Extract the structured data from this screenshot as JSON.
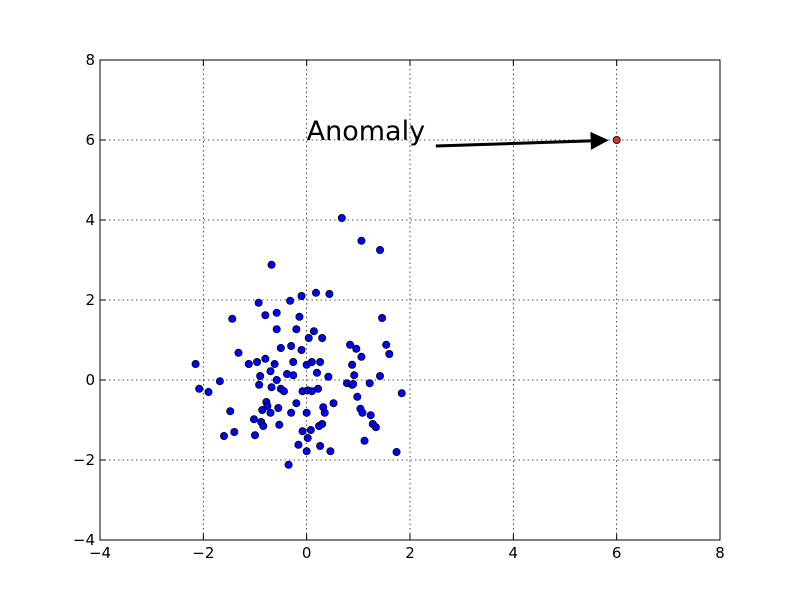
{
  "chart_data": {
    "type": "scatter",
    "title": "",
    "xlabel": "",
    "ylabel": "",
    "xlim": [
      -4,
      8
    ],
    "ylim": [
      -4,
      8
    ],
    "grid": true,
    "xticks": [
      -4,
      -2,
      0,
      2,
      4,
      6,
      8
    ],
    "yticks": [
      -4,
      -2,
      0,
      2,
      4,
      6,
      8
    ],
    "xtick_labels": [
      "−4",
      "−2",
      "0",
      "2",
      "4",
      "6",
      "8"
    ],
    "ytick_labels": [
      "−4",
      "−2",
      "0",
      "2",
      "4",
      "6",
      "8"
    ],
    "series": [
      {
        "color": "#0000ff",
        "points": [
          [
            -2.15,
            0.4
          ],
          [
            -2.08,
            -0.22
          ],
          [
            -1.9,
            -0.3
          ],
          [
            -1.68,
            -0.03
          ],
          [
            -1.6,
            -1.4
          ],
          [
            -1.48,
            -0.78
          ],
          [
            -1.44,
            1.53
          ],
          [
            -1.4,
            -1.3
          ],
          [
            -1.32,
            0.68
          ],
          [
            -1.12,
            0.4
          ],
          [
            -1.02,
            -0.98
          ],
          [
            -1.0,
            -1.38
          ],
          [
            -0.96,
            0.45
          ],
          [
            -0.93,
            1.93
          ],
          [
            -0.92,
            -0.12
          ],
          [
            -0.9,
            0.1
          ],
          [
            -0.88,
            -1.05
          ],
          [
            -0.86,
            -0.75
          ],
          [
            -0.84,
            -1.15
          ],
          [
            -0.8,
            0.53
          ],
          [
            -0.8,
            1.62
          ],
          [
            -0.78,
            -0.55
          ],
          [
            -0.76,
            -0.65
          ],
          [
            -0.7,
            -0.82
          ],
          [
            -0.7,
            0.22
          ],
          [
            -0.68,
            2.88
          ],
          [
            -0.68,
            -0.18
          ],
          [
            -0.62,
            0.4
          ],
          [
            -0.58,
            1.27
          ],
          [
            -0.58,
            1.68
          ],
          [
            -0.58,
            0.0
          ],
          [
            -0.55,
            -0.7
          ],
          [
            -0.53,
            -1.12
          ],
          [
            -0.5,
            -0.22
          ],
          [
            -0.5,
            0.8
          ],
          [
            -0.44,
            -0.28
          ],
          [
            -0.38,
            0.15
          ],
          [
            -0.35,
            -2.12
          ],
          [
            -0.32,
            1.98
          ],
          [
            -0.3,
            -0.82
          ],
          [
            -0.3,
            0.85
          ],
          [
            -0.26,
            0.45
          ],
          [
            -0.26,
            0.12
          ],
          [
            -0.2,
            -0.58
          ],
          [
            -0.2,
            1.27
          ],
          [
            -0.16,
            -1.62
          ],
          [
            -0.14,
            1.58
          ],
          [
            -0.1,
            0.75
          ],
          [
            -0.1,
            2.1
          ],
          [
            -0.08,
            -0.28
          ],
          [
            -0.08,
            -1.28
          ],
          [
            0.0,
            -0.82
          ],
          [
            0.0,
            -1.78
          ],
          [
            0.0,
            0.38
          ],
          [
            0.02,
            -0.26
          ],
          [
            0.02,
            -1.45
          ],
          [
            0.04,
            1.05
          ],
          [
            0.08,
            -1.25
          ],
          [
            0.1,
            0.45
          ],
          [
            0.1,
            -0.28
          ],
          [
            0.14,
            1.22
          ],
          [
            0.18,
            2.18
          ],
          [
            0.2,
            0.18
          ],
          [
            0.22,
            -0.22
          ],
          [
            0.24,
            -1.15
          ],
          [
            0.26,
            0.45
          ],
          [
            0.26,
            -1.65
          ],
          [
            0.3,
            1.05
          ],
          [
            0.3,
            -1.1
          ],
          [
            0.32,
            -0.68
          ],
          [
            0.35,
            -0.82
          ],
          [
            0.42,
            0.08
          ],
          [
            0.44,
            2.15
          ],
          [
            0.46,
            -1.78
          ],
          [
            0.52,
            -0.58
          ],
          [
            0.68,
            4.05
          ],
          [
            0.78,
            -0.08
          ],
          [
            0.84,
            0.88
          ],
          [
            0.88,
            0.38
          ],
          [
            0.88,
            -0.12
          ],
          [
            0.9,
            -0.1
          ],
          [
            0.92,
            0.12
          ],
          [
            0.96,
            0.78
          ],
          [
            0.98,
            -0.42
          ],
          [
            1.04,
            -0.72
          ],
          [
            1.06,
            0.58
          ],
          [
            1.06,
            3.48
          ],
          [
            1.08,
            -0.82
          ],
          [
            1.12,
            -1.52
          ],
          [
            1.22,
            -0.08
          ],
          [
            1.24,
            -0.88
          ],
          [
            1.28,
            -1.1
          ],
          [
            1.34,
            -1.18
          ],
          [
            1.42,
            0.1
          ],
          [
            1.42,
            3.25
          ],
          [
            1.46,
            1.55
          ],
          [
            1.54,
            0.88
          ],
          [
            1.6,
            0.65
          ],
          [
            1.74,
            -1.8
          ],
          [
            1.84,
            -0.33
          ]
        ]
      },
      {
        "color": "#c8392b",
        "points": [
          [
            6.0,
            6.0
          ]
        ]
      }
    ],
    "annotation": {
      "text": "Anomaly",
      "text_xy": [
        0.0,
        6.0
      ],
      "arrow_from": [
        2.5,
        5.85
      ],
      "arrow_to": [
        6.0,
        6.0
      ]
    }
  }
}
